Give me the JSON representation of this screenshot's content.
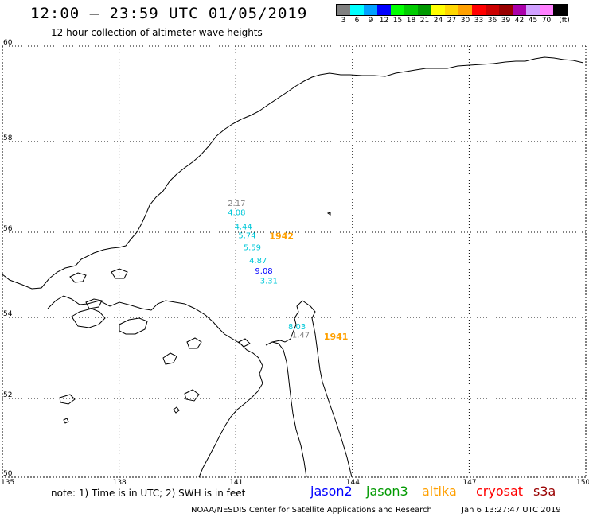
{
  "header": {
    "title": "12:00 — 23:59 UTC 01/05/2019",
    "subtitle": "12 hour collection of altimeter wave heights"
  },
  "legend": {
    "unit": "(ft)",
    "bins": [
      {
        "label": "3",
        "color": "#808080"
      },
      {
        "label": "6",
        "color": "#00ffff"
      },
      {
        "label": "9",
        "color": "#00a0ff"
      },
      {
        "label": "12",
        "color": "#0000ff"
      },
      {
        "label": "15",
        "color": "#00ff00"
      },
      {
        "label": "18",
        "color": "#00cc00"
      },
      {
        "label": "21",
        "color": "#009900"
      },
      {
        "label": "24",
        "color": "#ffff00"
      },
      {
        "label": "27",
        "color": "#ffd700"
      },
      {
        "label": "30",
        "color": "#ffa000"
      },
      {
        "label": "33",
        "color": "#ff0000"
      },
      {
        "label": "36",
        "color": "#cc0000"
      },
      {
        "label": "39",
        "color": "#990000"
      },
      {
        "label": "42",
        "color": "#aa00aa"
      },
      {
        "label": "45",
        "color": "#d0a0ff"
      },
      {
        "label": "70",
        "color": "#ff80ff"
      },
      {
        "label": "",
        "color": "#000000"
      }
    ]
  },
  "map": {
    "lat_ticks": [
      "60",
      "58",
      "56",
      "54",
      "52",
      "50"
    ],
    "lon_ticks": [
      "135",
      "138",
      "141",
      "144",
      "147",
      "150"
    ],
    "lat_range": [
      50,
      60
    ],
    "lon_range": [
      135,
      150
    ],
    "observations": [
      {
        "value": "2.17",
        "lon": 141.0,
        "lat": 56.65,
        "color": "#808080"
      },
      {
        "value": "4.08",
        "lon": 141.0,
        "lat": 56.45,
        "color": "#00c8d8"
      },
      {
        "value": "4.44",
        "lon": 141.17,
        "lat": 56.13,
        "color": "#00c8d8"
      },
      {
        "value": "5.74",
        "lon": 141.27,
        "lat": 55.93,
        "color": "#00c8d8"
      },
      {
        "value": "5.59",
        "lon": 141.4,
        "lat": 55.65,
        "color": "#00c8d8"
      },
      {
        "value": "4.87",
        "lon": 141.55,
        "lat": 55.35,
        "color": "#00c8d8"
      },
      {
        "value": "9.08",
        "lon": 141.7,
        "lat": 55.1,
        "color": "#0000ff"
      },
      {
        "value": "3.31",
        "lon": 141.83,
        "lat": 54.87,
        "color": "#00c8d8"
      },
      {
        "value": "8.03",
        "lon": 142.55,
        "lat": 53.78,
        "color": "#00c8d8"
      },
      {
        "value": "1.47",
        "lon": 142.65,
        "lat": 53.58,
        "color": "#808080"
      }
    ],
    "pass_labels": [
      {
        "label": "1942",
        "lon": 142.15,
        "lat": 55.93,
        "color": "#ffa000"
      },
      {
        "label": "1941",
        "lon": 143.55,
        "lat": 53.55,
        "color": "#ffa000"
      }
    ]
  },
  "footer": {
    "note": "note: 1) Time is in UTC; 2) SWH is in feet",
    "satellites": [
      {
        "name": "jason2",
        "color": "#0000ff"
      },
      {
        "name": "jason3",
        "color": "#009900"
      },
      {
        "name": "altika",
        "color": "#ffa000"
      },
      {
        "name": "cryosat",
        "color": "#ff0000"
      },
      {
        "name": "s3a",
        "color": "#990000"
      }
    ],
    "credit": "NOAA/NESDIS Center for Satellite Applications and Research",
    "timestamp": "Jan  6 13:27:47 UTC 2019"
  }
}
